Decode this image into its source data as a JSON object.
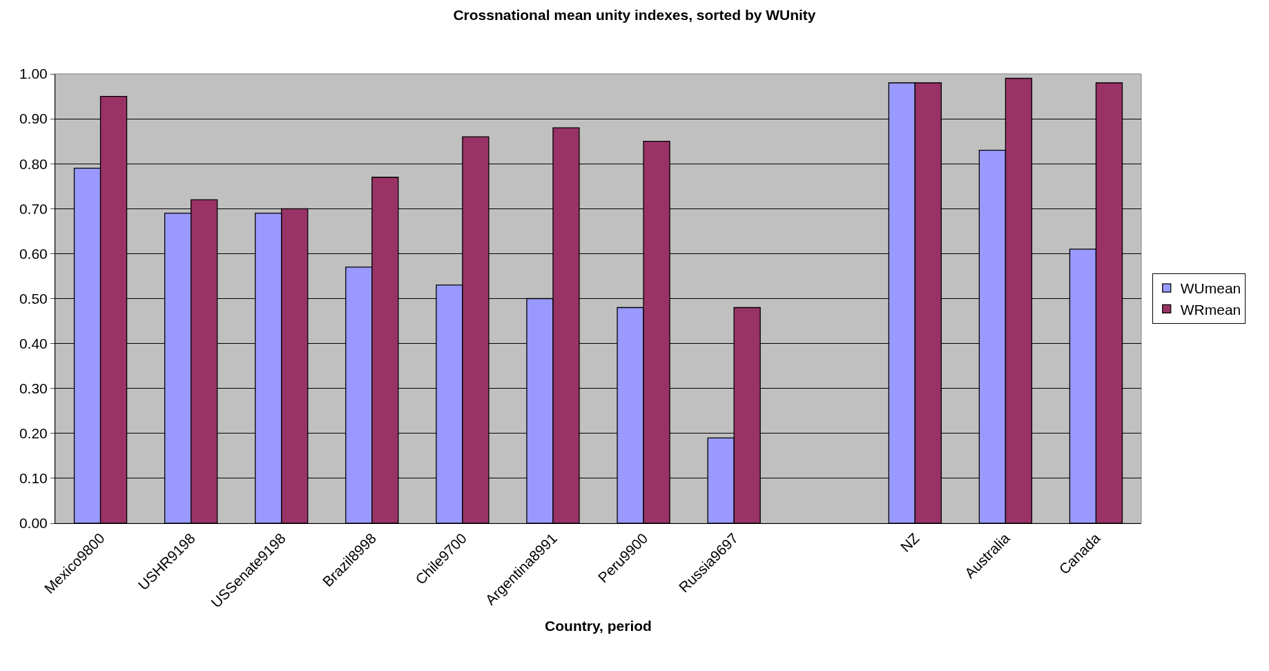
{
  "chart_data": {
    "type": "bar",
    "title": "Crossnational mean unity indexes, sorted by WUnity",
    "xlabel": "Country, period",
    "categories": [
      "Mexico9800",
      "USHR9198",
      "USSenate9198",
      "Brazil8998",
      "Chile9700",
      "Argentina8991",
      "Peru9900",
      "Russia9697",
      null,
      "NZ",
      "Australia",
      "Canada"
    ],
    "series": [
      {
        "name": "WUmean",
        "color": "#9999ff",
        "values": [
          0.79,
          0.69,
          0.69,
          0.57,
          0.53,
          0.5,
          0.48,
          0.19,
          null,
          0.98,
          0.83,
          0.61
        ]
      },
      {
        "name": "WRmean",
        "color": "#993366",
        "values": [
          0.95,
          0.72,
          0.7,
          0.77,
          0.86,
          0.88,
          0.85,
          0.48,
          null,
          0.98,
          0.99,
          0.98
        ]
      }
    ],
    "ylim": [
      0,
      1
    ],
    "yticks": [
      {
        "value": 0,
        "label": "0.00"
      },
      {
        "value": 0.1,
        "label": "0.10"
      },
      {
        "value": 0.2,
        "label": "0.20"
      },
      {
        "value": 0.3,
        "label": "0.30"
      },
      {
        "value": 0.4,
        "label": "0.40"
      },
      {
        "value": 0.5,
        "label": "0.50"
      },
      {
        "value": 0.6,
        "label": "0.60"
      },
      {
        "value": 0.7,
        "label": "0.70"
      },
      {
        "value": 0.8,
        "label": "0.80"
      },
      {
        "value": 0.9,
        "label": "0.90"
      },
      {
        "value": 1.0,
        "label": "1.00"
      }
    ],
    "grid": "y",
    "legend": "right"
  }
}
